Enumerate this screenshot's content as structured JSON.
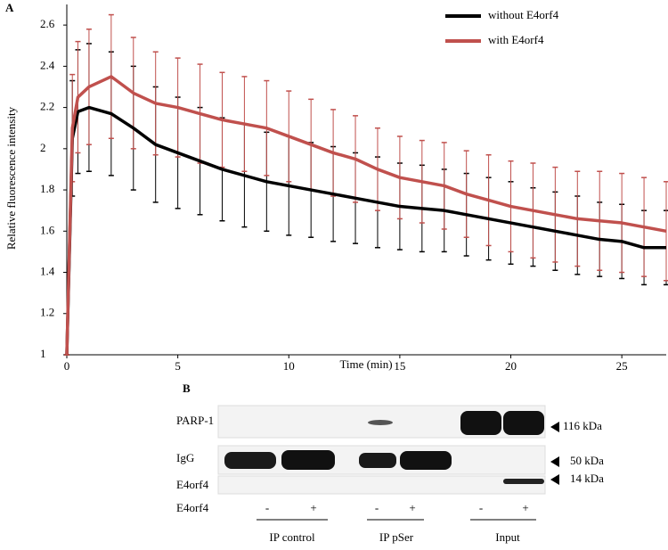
{
  "chart_data": {
    "type": "line",
    "panel_label": "A",
    "xlabel": "Time (min)",
    "ylabel": "Relative fluorescence intensity",
    "x": [
      0,
      0.25,
      0.5,
      1,
      2,
      3,
      4,
      5,
      6,
      7,
      8,
      9,
      10,
      11,
      12,
      13,
      14,
      15,
      16,
      17,
      18,
      19,
      20,
      21,
      22,
      23,
      24,
      25,
      26,
      27
    ],
    "series": [
      {
        "name": "without E4orf4",
        "color": "#000000",
        "values": [
          1.0,
          2.05,
          2.18,
          2.2,
          2.17,
          2.1,
          2.02,
          1.98,
          1.94,
          1.9,
          1.87,
          1.84,
          1.82,
          1.8,
          1.78,
          1.76,
          1.74,
          1.72,
          1.71,
          1.7,
          1.68,
          1.66,
          1.64,
          1.62,
          1.6,
          1.58,
          1.56,
          1.55,
          1.52,
          1.52
        ],
        "errors": [
          0,
          0.28,
          0.3,
          0.31,
          0.3,
          0.3,
          0.28,
          0.27,
          0.26,
          0.25,
          0.25,
          0.24,
          0.24,
          0.23,
          0.23,
          0.22,
          0.22,
          0.21,
          0.21,
          0.2,
          0.2,
          0.2,
          0.2,
          0.19,
          0.19,
          0.19,
          0.18,
          0.18,
          0.18,
          0.18
        ]
      },
      {
        "name": "with E4orf4",
        "color": "#c0504d",
        "values": [
          1.0,
          2.1,
          2.25,
          2.3,
          2.35,
          2.27,
          2.22,
          2.2,
          2.17,
          2.14,
          2.12,
          2.1,
          2.06,
          2.02,
          1.98,
          1.95,
          1.9,
          1.86,
          1.84,
          1.82,
          1.78,
          1.75,
          1.72,
          1.7,
          1.68,
          1.66,
          1.65,
          1.64,
          1.62,
          1.6
        ],
        "errors": [
          0,
          0.26,
          0.27,
          0.28,
          0.3,
          0.27,
          0.25,
          0.24,
          0.24,
          0.23,
          0.23,
          0.23,
          0.22,
          0.22,
          0.21,
          0.21,
          0.2,
          0.2,
          0.2,
          0.21,
          0.21,
          0.22,
          0.22,
          0.23,
          0.23,
          0.23,
          0.24,
          0.24,
          0.24,
          0.24
        ]
      }
    ],
    "xlim": [
      0,
      27
    ],
    "ylim": [
      1,
      2.7
    ],
    "xticks": [
      0,
      5,
      10,
      15,
      20,
      25
    ],
    "yticks": [
      1,
      {
        "value": 1.2,
        "label": "1.2"
      },
      {
        "value": 1.4,
        "label": "1.4"
      },
      {
        "value": 1.6,
        "label": "1.6"
      },
      {
        "value": 1.8,
        "label": "1.8"
      },
      2,
      {
        "value": 2.2,
        "label": "2.2"
      },
      {
        "value": 2.4,
        "label": "2.4"
      },
      {
        "value": 2.6,
        "label": "2.6"
      }
    ],
    "legend": "upper right",
    "grid": false
  },
  "blot": {
    "panel_label": "B",
    "rows": [
      "PARP-1",
      "IgG",
      "E4orf4"
    ],
    "markers": [
      "116 kDa",
      "50 kDa",
      "14 kDa"
    ],
    "treatment_label": "E4orf4",
    "signs": [
      "-",
      "+",
      "-",
      "+",
      "-",
      "+"
    ],
    "groups": [
      "IP control",
      "IP pSer",
      "Input"
    ]
  }
}
